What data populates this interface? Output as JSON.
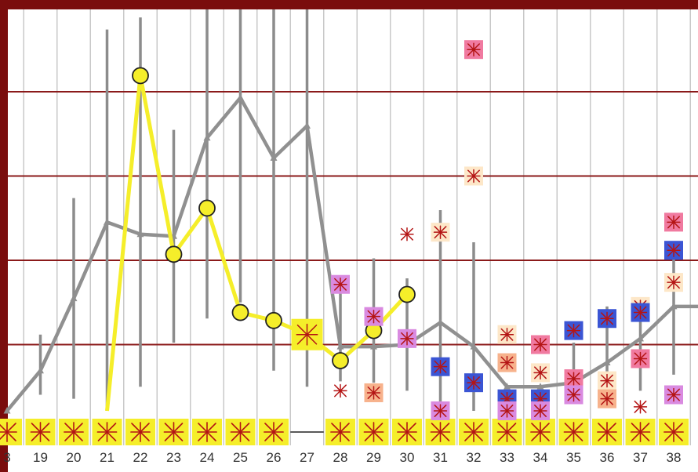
{
  "chart_data": {
    "type": "line",
    "x": [
      18,
      19,
      20,
      21,
      22,
      23,
      24,
      25,
      26,
      27,
      28,
      29,
      30,
      31,
      32,
      33,
      34,
      35,
      36,
      37,
      38,
      39
    ],
    "xtick_labels": [
      "3",
      "19",
      "20",
      "21",
      "22",
      "23",
      "24",
      "25",
      "26",
      "27",
      "28",
      "29",
      "30",
      "31",
      "32",
      "33",
      "34",
      "35",
      "36",
      "37",
      "38",
      ""
    ],
    "ylim": [
      0,
      100
    ],
    "grid": {
      "horizontal": [
        16.5,
        37.5,
        58.5,
        79.5
      ],
      "vertical": true
    },
    "series": [
      {
        "color": "#909090",
        "marker": "triangle",
        "values": [
          0,
          10,
          28,
          47,
          44,
          43.5,
          68,
          78,
          63,
          71,
          16,
          16,
          16.5,
          22,
          16,
          6,
          6,
          7,
          12,
          18,
          26,
          26
        ]
      },
      {
        "color": "#f5ee2a",
        "marker": "circle",
        "values": [
          null,
          null,
          null,
          0,
          83.5,
          39,
          50.5,
          24.5,
          22.5,
          19,
          12.5,
          20,
          29,
          null,
          null,
          null,
          null,
          null,
          null,
          null,
          null,
          null
        ]
      }
    ],
    "range_bars": [
      {
        "x": 19,
        "low": 4,
        "high": 19
      },
      {
        "x": 20,
        "low": 3,
        "high": 53
      },
      {
        "x": 21,
        "low": 0,
        "high": 95
      },
      {
        "x": 22,
        "low": 6,
        "high": 98
      },
      {
        "x": 23,
        "low": 17,
        "high": 70
      },
      {
        "x": 24,
        "low": 23,
        "high": 100
      },
      {
        "x": 25,
        "low": 27,
        "high": 100
      },
      {
        "x": 26,
        "low": 10,
        "high": 100
      },
      {
        "x": 27,
        "low": 6,
        "high": 100
      },
      {
        "x": 28,
        "low": 3,
        "high": 32
      },
      {
        "x": 29,
        "low": 7,
        "high": 38
      },
      {
        "x": 30,
        "low": 5,
        "high": 33
      },
      {
        "x": 31,
        "low": 1,
        "high": 50
      },
      {
        "x": 32,
        "low": 0,
        "high": 42
      },
      {
        "x": 35,
        "low": 3,
        "high": 17
      },
      {
        "x": 36,
        "low": 4,
        "high": 26
      },
      {
        "x": 37,
        "low": 5,
        "high": 28
      },
      {
        "x": 38,
        "low": 9,
        "high": 41
      }
    ],
    "scatter_points": [
      {
        "x": 27,
        "y": 19,
        "fill": "#f5ee2a",
        "size": "large"
      },
      {
        "x": 28,
        "y": 31.5,
        "fill": "#d98ae0"
      },
      {
        "x": 28,
        "y": 5,
        "fill": "#ffffff"
      },
      {
        "x": 29,
        "y": 23.5,
        "fill": "#d98ae0"
      },
      {
        "x": 29,
        "y": 4.5,
        "fill": "#f7b28c"
      },
      {
        "x": 30,
        "y": 18,
        "fill": "#d98ae0"
      },
      {
        "x": 30,
        "y": 44,
        "fill": "#ffffff"
      },
      {
        "x": 31,
        "y": 44.5,
        "fill": "#fde7c8"
      },
      {
        "x": 31,
        "y": 11,
        "fill": "#3b55d4"
      },
      {
        "x": 31,
        "y": 0,
        "fill": "#d98ae0"
      },
      {
        "x": 32,
        "y": 90,
        "fill": "#f07aa0"
      },
      {
        "x": 32,
        "y": 58.5,
        "fill": "#fde7c8"
      },
      {
        "x": 32,
        "y": 7,
        "fill": "#3b55d4"
      },
      {
        "x": 33,
        "y": 19,
        "fill": "#fde7c8"
      },
      {
        "x": 33,
        "y": 12,
        "fill": "#f7b28c"
      },
      {
        "x": 33,
        "y": 3,
        "fill": "#3b55d4"
      },
      {
        "x": 33,
        "y": 0,
        "fill": "#d98ae0"
      },
      {
        "x": 34,
        "y": 16.5,
        "fill": "#f07aa0"
      },
      {
        "x": 34,
        "y": 9.5,
        "fill": "#fde7c8"
      },
      {
        "x": 34,
        "y": 3,
        "fill": "#3b55d4"
      },
      {
        "x": 34,
        "y": 0,
        "fill": "#d98ae0"
      },
      {
        "x": 35,
        "y": 20,
        "fill": "#3b55d4"
      },
      {
        "x": 35,
        "y": 8,
        "fill": "#f07aa0"
      },
      {
        "x": 35,
        "y": 4,
        "fill": "#d98ae0"
      },
      {
        "x": 36,
        "y": 23,
        "fill": "#3b55d4"
      },
      {
        "x": 36,
        "y": 7.5,
        "fill": "#fde7c8"
      },
      {
        "x": 36,
        "y": 3,
        "fill": "#f7b28c"
      },
      {
        "x": 37,
        "y": 26,
        "fill": "#fde7c8"
      },
      {
        "x": 37,
        "y": 24.5,
        "fill": "#3b55d4"
      },
      {
        "x": 37,
        "y": 13,
        "fill": "#f07aa0"
      },
      {
        "x": 37,
        "y": 1,
        "fill": "#ffffff"
      },
      {
        "x": 38,
        "y": 47,
        "fill": "#f07aa0"
      },
      {
        "x": 38,
        "y": 40,
        "fill": "#3b55d4"
      },
      {
        "x": 38,
        "y": 32,
        "fill": "#fde7c8"
      },
      {
        "x": 38,
        "y": 4,
        "fill": "#d98ae0"
      }
    ],
    "baseline_markers": [
      18,
      19,
      20,
      21,
      22,
      23,
      24,
      25,
      26,
      28,
      29,
      30,
      31,
      32,
      33,
      34,
      35,
      36,
      37,
      38
    ],
    "colors": {
      "frame": "#7a0d0d",
      "plot_background": "#ffffff",
      "vertical_grid": "#c8c8c8",
      "horizontal_grid": "#8b1a1a",
      "range_bar": "#8c8c8c",
      "baseline_marker": "#f5ee2a",
      "cross_mark": "#b41414"
    }
  }
}
